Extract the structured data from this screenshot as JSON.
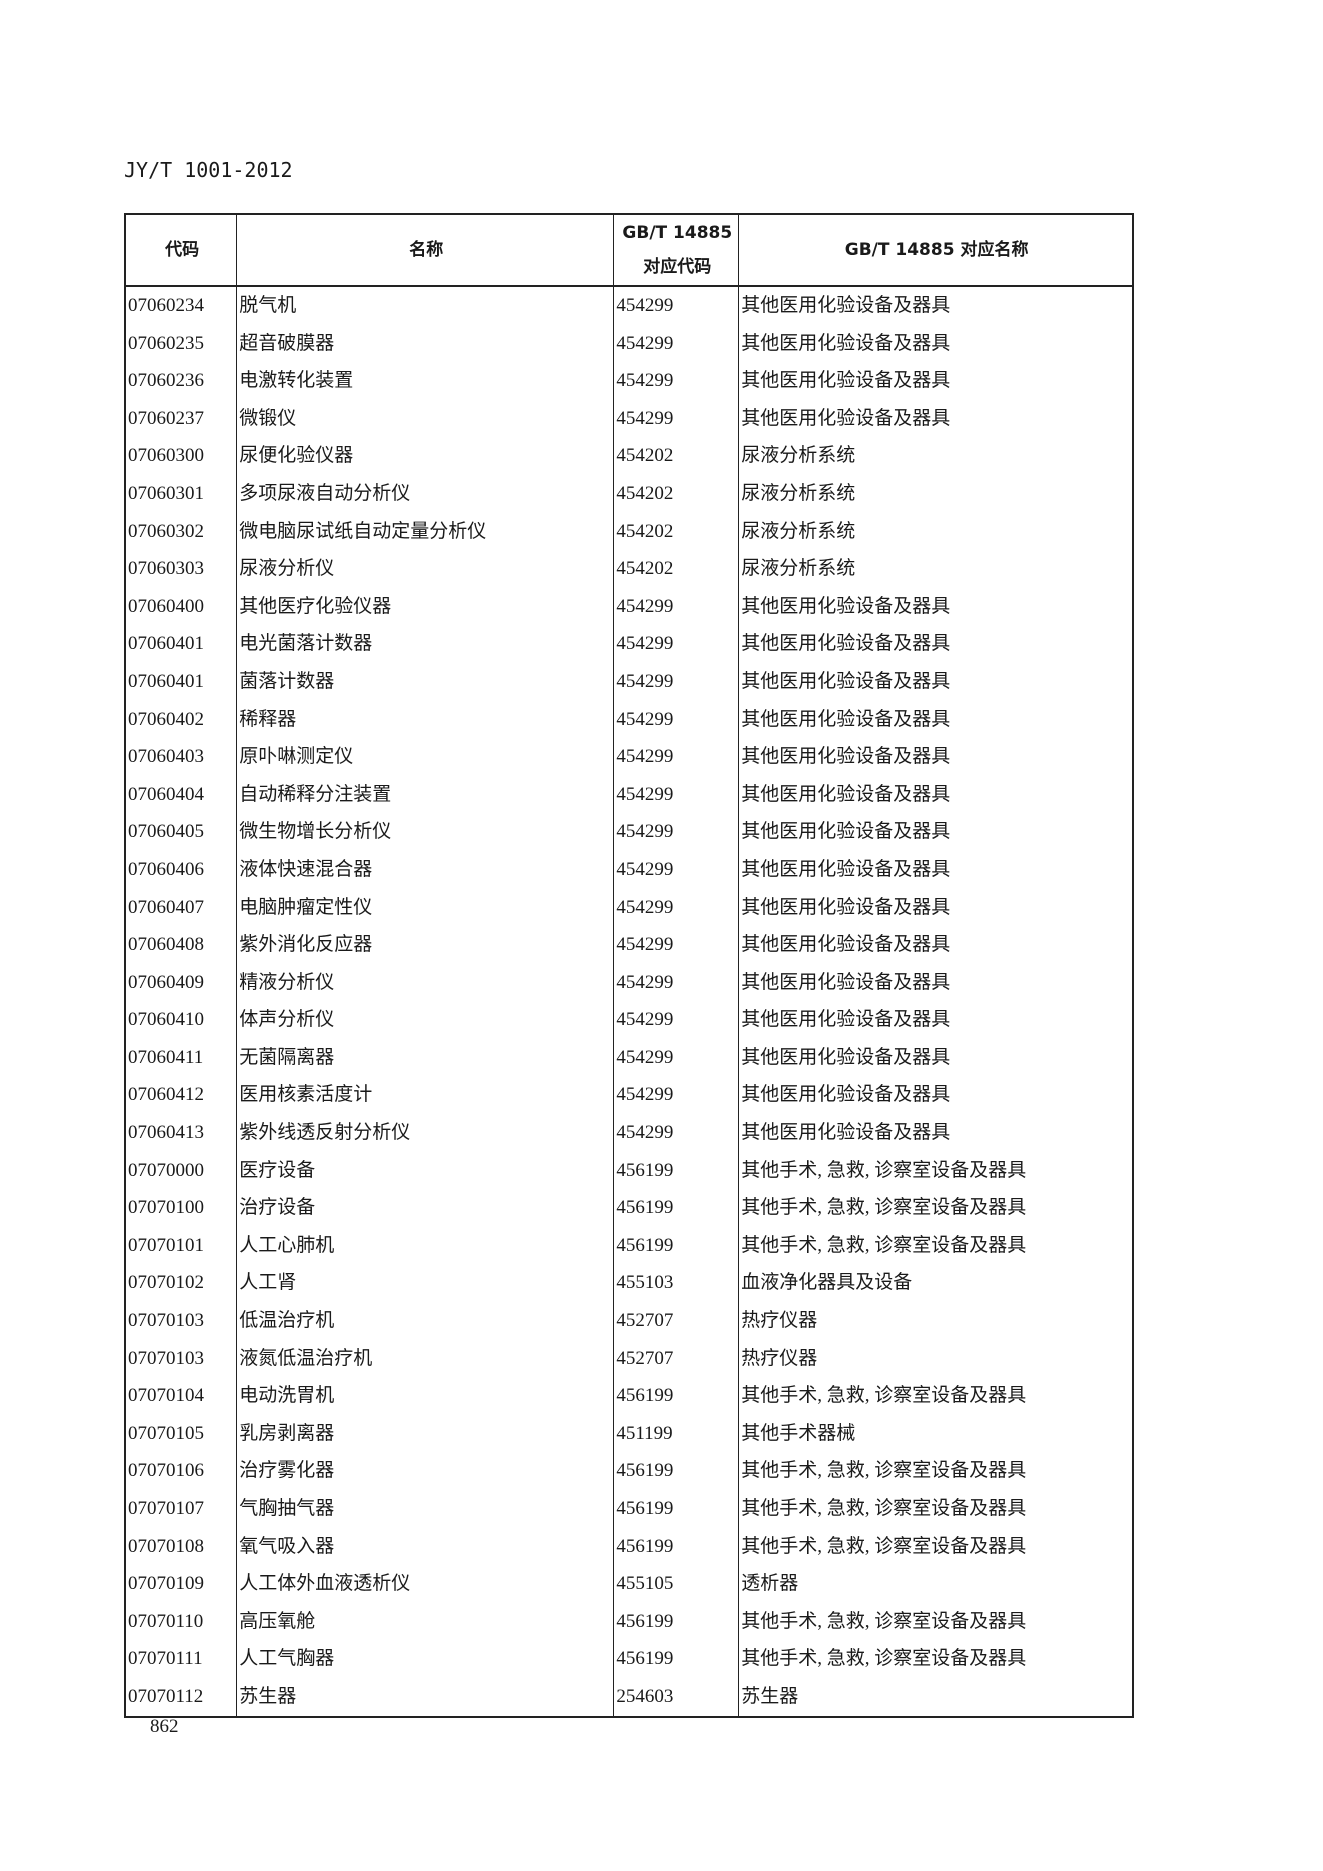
{
  "header": {
    "doc_id": "JY/T 1001-2012"
  },
  "table": {
    "columns": [
      "代码",
      "名称",
      "GB/T 14885 对应代码",
      "GB/T 14885 对应名称"
    ],
    "column_lines": {
      "col3_line1": "GB/T 14885",
      "col3_line2": "对应代码"
    },
    "rows": [
      [
        "07060234",
        "脱气机",
        "454299",
        "其他医用化验设备及器具"
      ],
      [
        "07060235",
        "超音破膜器",
        "454299",
        "其他医用化验设备及器具"
      ],
      [
        "07060236",
        "电激转化装置",
        "454299",
        "其他医用化验设备及器具"
      ],
      [
        "07060237",
        "微锻仪",
        "454299",
        "其他医用化验设备及器具"
      ],
      [
        "07060300",
        "尿便化验仪器",
        "454202",
        "尿液分析系统"
      ],
      [
        "07060301",
        "多项尿液自动分析仪",
        "454202",
        "尿液分析系统"
      ],
      [
        "07060302",
        "微电脑尿试纸自动定量分析仪",
        "454202",
        "尿液分析系统"
      ],
      [
        "07060303",
        "尿液分析仪",
        "454202",
        "尿液分析系统"
      ],
      [
        "07060400",
        "其他医疗化验仪器",
        "454299",
        "其他医用化验设备及器具"
      ],
      [
        "07060401",
        "电光菌落计数器",
        "454299",
        "其他医用化验设备及器具"
      ],
      [
        "07060401",
        "菌落计数器",
        "454299",
        "其他医用化验设备及器具"
      ],
      [
        "07060402",
        "稀释器",
        "454299",
        "其他医用化验设备及器具"
      ],
      [
        "07060403",
        "原卟啉测定仪",
        "454299",
        "其他医用化验设备及器具"
      ],
      [
        "07060404",
        "自动稀释分注装置",
        "454299",
        "其他医用化验设备及器具"
      ],
      [
        "07060405",
        "微生物增长分析仪",
        "454299",
        "其他医用化验设备及器具"
      ],
      [
        "07060406",
        "液体快速混合器",
        "454299",
        "其他医用化验设备及器具"
      ],
      [
        "07060407",
        "电脑肿瘤定性仪",
        "454299",
        "其他医用化验设备及器具"
      ],
      [
        "07060408",
        "紫外消化反应器",
        "454299",
        "其他医用化验设备及器具"
      ],
      [
        "07060409",
        "精液分析仪",
        "454299",
        "其他医用化验设备及器具"
      ],
      [
        "07060410",
        "体声分析仪",
        "454299",
        "其他医用化验设备及器具"
      ],
      [
        "07060411",
        "无菌隔离器",
        "454299",
        "其他医用化验设备及器具"
      ],
      [
        "07060412",
        "医用核素活度计",
        "454299",
        "其他医用化验设备及器具"
      ],
      [
        "07060413",
        "紫外线透反射分析仪",
        "454299",
        "其他医用化验设备及器具"
      ],
      [
        "07070000",
        "医疗设备",
        "456199",
        "其他手术, 急救, 诊察室设备及器具"
      ],
      [
        "07070100",
        "治疗设备",
        "456199",
        "其他手术, 急救, 诊察室设备及器具"
      ],
      [
        "07070101",
        "人工心肺机",
        "456199",
        "其他手术, 急救, 诊察室设备及器具"
      ],
      [
        "07070102",
        "人工肾",
        "455103",
        "血液净化器具及设备"
      ],
      [
        "07070103",
        "低温治疗机",
        "452707",
        "热疗仪器"
      ],
      [
        "07070103",
        "液氮低温治疗机",
        "452707",
        "热疗仪器"
      ],
      [
        "07070104",
        "电动洗胃机",
        "456199",
        "其他手术, 急救, 诊察室设备及器具"
      ],
      [
        "07070105",
        "乳房剥离器",
        "451199",
        "其他手术器械"
      ],
      [
        "07070106",
        "治疗雾化器",
        "456199",
        "其他手术, 急救, 诊察室设备及器具"
      ],
      [
        "07070107",
        "气胸抽气器",
        "456199",
        "其他手术, 急救, 诊察室设备及器具"
      ],
      [
        "07070108",
        "氧气吸入器",
        "456199",
        "其他手术, 急救, 诊察室设备及器具"
      ],
      [
        "07070109",
        "人工体外血液透析仪",
        "455105",
        "透析器"
      ],
      [
        "07070110",
        "高压氧舱",
        "456199",
        "其他手术, 急救, 诊察室设备及器具"
      ],
      [
        "07070111",
        "人工气胸器",
        "456199",
        "其他手术, 急救, 诊察室设备及器具"
      ],
      [
        "07070112",
        "苏生器",
        "254603",
        "苏生器"
      ]
    ]
  },
  "footer": {
    "page_number": "862"
  }
}
